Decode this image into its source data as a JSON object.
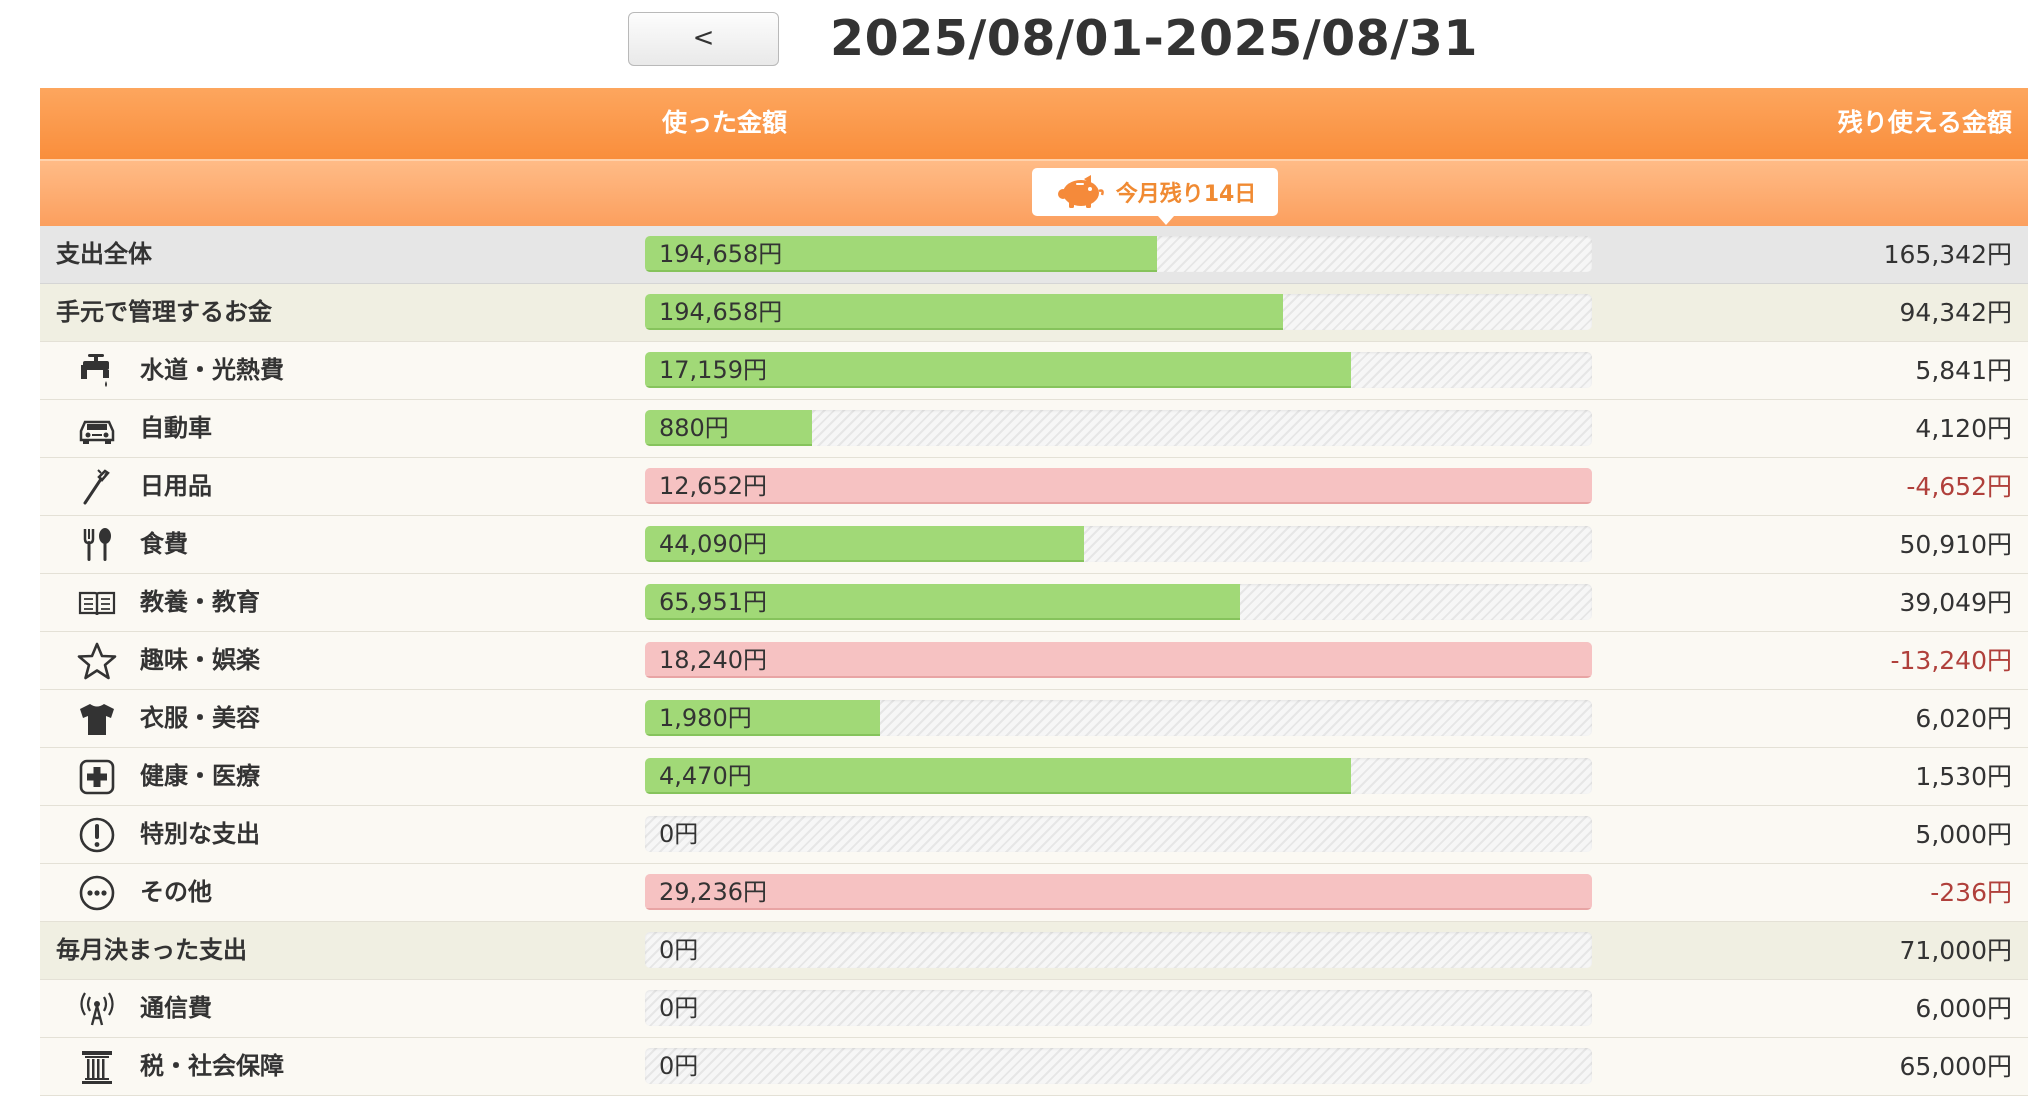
{
  "nav": {
    "prev_label": "<"
  },
  "period": "2025/08/01-2025/08/31",
  "header": {
    "used_label": "使った金額",
    "remain_label": "残り使える金額"
  },
  "badge": {
    "days_left": "今月残り14日"
  },
  "colors": {
    "accent": "#f98e3c",
    "ok": "#a1d977",
    "over": "#f6c2c2",
    "negative": "#b0403b"
  },
  "today_fraction": 0.548,
  "rows": [
    {
      "kind": "total",
      "label": "支出全体",
      "icon": "",
      "used": "194,658円",
      "remain": "165,342円",
      "ratio": 0.541,
      "status": "ok",
      "negative": false
    },
    {
      "kind": "group",
      "label": "手元で管理するお金",
      "icon": "",
      "used": "194,658円",
      "remain": "94,342円",
      "ratio": 0.674,
      "status": "ok",
      "negative": false
    },
    {
      "kind": "cat",
      "label": "水道・光熱費",
      "icon": "faucet-icon",
      "used": "17,159円",
      "remain": "5,841円",
      "ratio": 0.746,
      "status": "ok",
      "negative": false
    },
    {
      "kind": "cat",
      "label": "自動車",
      "icon": "car-icon",
      "used": "880円",
      "remain": "4,120円",
      "ratio": 0.176,
      "status": "ok",
      "negative": false
    },
    {
      "kind": "cat",
      "label": "日用品",
      "icon": "toothbrush-icon",
      "used": "12,652円",
      "remain": "-4,652円",
      "ratio": 1.0,
      "status": "over",
      "negative": true
    },
    {
      "kind": "cat",
      "label": "食費",
      "icon": "fork-spoon-icon",
      "used": "44,090円",
      "remain": "50,910円",
      "ratio": 0.464,
      "status": "ok",
      "negative": false
    },
    {
      "kind": "cat",
      "label": "教養・教育",
      "icon": "book-icon",
      "used": "65,951円",
      "remain": "39,049円",
      "ratio": 0.628,
      "status": "ok",
      "negative": false
    },
    {
      "kind": "cat",
      "label": "趣味・娯楽",
      "icon": "star-icon",
      "used": "18,240円",
      "remain": "-13,240円",
      "ratio": 1.0,
      "status": "over",
      "negative": true
    },
    {
      "kind": "cat",
      "label": "衣服・美容",
      "icon": "shirt-icon",
      "used": "1,980円",
      "remain": "6,020円",
      "ratio": 0.248,
      "status": "ok",
      "negative": false
    },
    {
      "kind": "cat",
      "label": "健康・医療",
      "icon": "medical-cross-icon",
      "used": "4,470円",
      "remain": "1,530円",
      "ratio": 0.745,
      "status": "ok",
      "negative": false
    },
    {
      "kind": "cat",
      "label": "特別な支出",
      "icon": "exclamation-icon",
      "used": "0円",
      "remain": "5,000円",
      "ratio": 0,
      "status": "ok",
      "negative": false
    },
    {
      "kind": "cat",
      "label": "その他",
      "icon": "ellipsis-icon",
      "used": "29,236円",
      "remain": "-236円",
      "ratio": 1.0,
      "status": "over",
      "negative": true
    },
    {
      "kind": "group",
      "label": "毎月決まった支出",
      "icon": "",
      "used": "0円",
      "remain": "71,000円",
      "ratio": 0,
      "status": "ok",
      "negative": false
    },
    {
      "kind": "cat",
      "label": "通信費",
      "icon": "antenna-icon",
      "used": "0円",
      "remain": "6,000円",
      "ratio": 0,
      "status": "ok",
      "negative": false
    },
    {
      "kind": "cat",
      "label": "税・社会保障",
      "icon": "pillar-icon",
      "used": "0円",
      "remain": "65,000円",
      "ratio": 0,
      "status": "ok",
      "negative": false
    }
  ]
}
